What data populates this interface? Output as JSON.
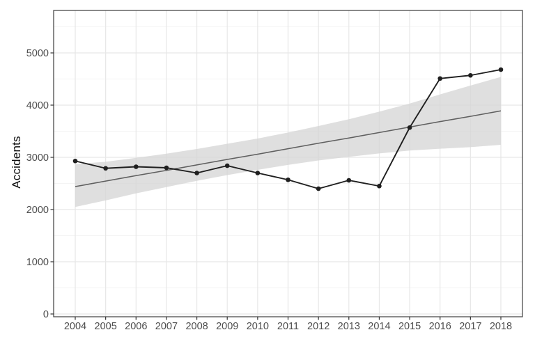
{
  "page": {
    "background": "#ffffff"
  },
  "chart_data": {
    "type": "line",
    "title": "",
    "xlabel": "",
    "ylabel": "Accidents",
    "legend_position": "none",
    "grid": {
      "show": true,
      "major": "#e7e7e7",
      "minor": "#f4f4f4"
    },
    "panel_border_color": "#4a4a4a",
    "axis": {
      "tick_color": "#333333",
      "tick_label_color": "#4d4d4d",
      "title_color": "#0d0d0d"
    },
    "xlim": [
      2003.3,
      2018.7
    ],
    "ylim": [
      0,
      5800
    ],
    "x": [
      2004,
      2005,
      2006,
      2007,
      2008,
      2009,
      2010,
      2011,
      2012,
      2013,
      2014,
      2015,
      2016,
      2017,
      2018
    ],
    "xticks": [
      "2004",
      "2005",
      "2006",
      "2007",
      "2008",
      "2009",
      "2010",
      "2011",
      "2012",
      "2013",
      "2014",
      "2015",
      "2016",
      "2017",
      "2018"
    ],
    "ytick_values": [
      0,
      1000,
      2000,
      3000,
      4000,
      5000
    ],
    "ytick_labels": [
      "0",
      "1000",
      "2000",
      "3000",
      "4000",
      "5000"
    ],
    "ytick_minor_values": [
      500,
      1500,
      2500,
      3500,
      4500,
      5500
    ],
    "series": [
      {
        "name": "observed-accidents",
        "type": "line",
        "markers": true,
        "color": "#1f1f1f",
        "values": [
          2930,
          2790,
          2820,
          2800,
          2700,
          2840,
          2700,
          2570,
          2400,
          2560,
          2450,
          3570,
          4510,
          4570,
          4680
        ]
      },
      {
        "name": "linear-trend",
        "type": "line",
        "markers": false,
        "color": "#5f5f5f",
        "values": [
          2440,
          2545,
          2650,
          2750,
          2855,
          2960,
          3060,
          3165,
          3270,
          3370,
          3475,
          3580,
          3685,
          3785,
          3890
        ]
      }
    ],
    "band": {
      "name": "confidence-band",
      "for_series": "linear-trend",
      "color": "#d4d4d4",
      "lower": [
        2050,
        2175,
        2310,
        2430,
        2550,
        2660,
        2760,
        2855,
        2940,
        3010,
        3075,
        3130,
        3165,
        3195,
        3240
      ],
      "upper": [
        2870,
        2915,
        2990,
        3070,
        3160,
        3260,
        3360,
        3475,
        3600,
        3730,
        3875,
        4030,
        4205,
        4375,
        4540
      ]
    }
  }
}
